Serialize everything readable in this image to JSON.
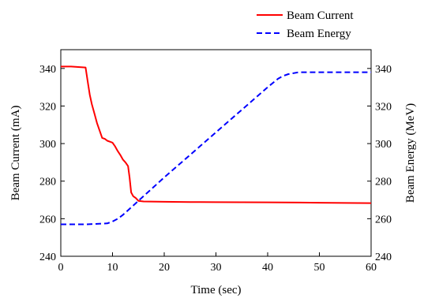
{
  "chart_data": {
    "type": "line",
    "title": "",
    "xlabel": "Time (sec)",
    "ylabel_left": "Beam Current (mA)",
    "ylabel_right": "Beam Energy (MeV)",
    "xlim": [
      0,
      60
    ],
    "ylim_left": [
      240,
      350
    ],
    "ylim_right": [
      240,
      350
    ],
    "x_ticks": [
      0,
      10,
      20,
      30,
      40,
      50,
      60
    ],
    "y_ticks_left": [
      240,
      260,
      280,
      300,
      320,
      340
    ],
    "y_ticks_right": [
      240,
      260,
      280,
      300,
      320,
      340
    ],
    "grid": false,
    "legend_position": "top-right",
    "series": [
      {
        "name": "Beam Current",
        "axis": "left",
        "color": "#ff0000",
        "style": "solid",
        "x": [
          0,
          2,
          4.8,
          5.2,
          5.6,
          6,
          6.5,
          7,
          7.5,
          8,
          8.5,
          9,
          9.5,
          10,
          10.5,
          11,
          11.5,
          12,
          12.5,
          13,
          13.3,
          13.6,
          14,
          14.5,
          15,
          16,
          20,
          25,
          30,
          40,
          50,
          60
        ],
        "y": [
          341,
          341,
          340.5,
          333,
          326,
          321,
          316,
          311,
          307,
          303,
          302.5,
          301.5,
          301,
          300.5,
          298.5,
          296,
          294,
          291.5,
          290,
          288,
          282,
          274,
          272,
          271,
          269.5,
          269.2,
          269,
          268.9,
          268.8,
          268.7,
          268.5,
          268.3
        ]
      },
      {
        "name": "Beam Energy",
        "axis": "right",
        "color": "#0000ff",
        "style": "dashed",
        "x": [
          0,
          5,
          9,
          10,
          11,
          12,
          13,
          14,
          15,
          16,
          20,
          25,
          30,
          35,
          40,
          42,
          43,
          44,
          45,
          46,
          50,
          60
        ],
        "y": [
          257,
          257,
          257.5,
          258.5,
          260,
          262,
          264.5,
          267,
          269.5,
          272,
          282,
          294,
          306,
          318,
          330,
          334.5,
          336,
          337,
          337.5,
          338,
          338,
          338
        ]
      }
    ]
  }
}
